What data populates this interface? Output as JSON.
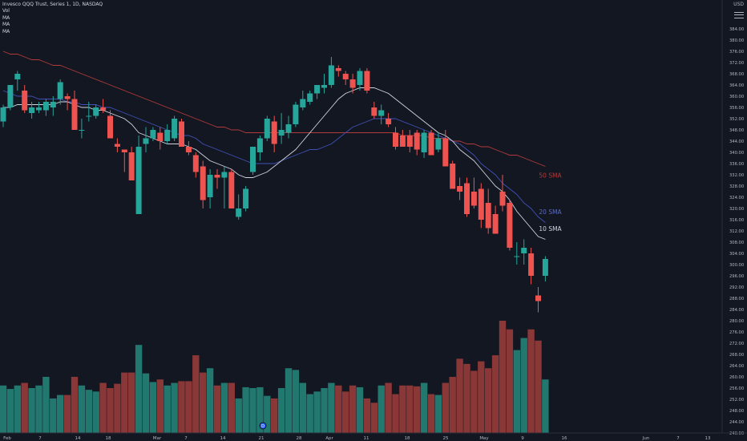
{
  "legend": {
    "symbol_line": "Invesco QQQ Trust, Series 1, 1D, NASDAQ",
    "vol_label": "Vol",
    "ma_labels": [
      "MA",
      "MA",
      "MA"
    ]
  },
  "price_scale": {
    "currency": "USD",
    "ticks": [
      "384.00",
      "380.00",
      "376.00",
      "372.00",
      "368.00",
      "364.00",
      "360.00",
      "356.00",
      "352.00",
      "348.00",
      "344.00",
      "340.00",
      "336.00",
      "332.00",
      "328.00",
      "324.00",
      "320.00",
      "316.00",
      "312.00",
      "308.00",
      "304.00",
      "300.00",
      "296.00",
      "292.00",
      "288.00",
      "284.00",
      "280.00",
      "276.00",
      "272.00",
      "268.00",
      "264.00",
      "260.00",
      "256.00",
      "252.00",
      "248.00",
      "244.00",
      "240.00"
    ]
  },
  "time_scale": {
    "ticks": [
      "Feb",
      "7",
      "14",
      "18",
      "Mar",
      "7",
      "14",
      "21",
      "28",
      "Apr",
      "11",
      "18",
      "25",
      "May",
      "9",
      "16",
      "Jun",
      "7",
      "13"
    ]
  },
  "sma_labels": {
    "sma50": "50 SMA",
    "sma20": "20 SMA",
    "sma10": "10 SMA"
  },
  "colors": {
    "background": "#131722",
    "up": "#26a69a",
    "down": "#ef5350",
    "vol_up": "#22786e",
    "vol_down": "#8a3737",
    "sma10": "#d1d4dc",
    "sma20": "#3f51b5",
    "sma50": "#b23a3a"
  },
  "event_marker": "D",
  "chart_data": {
    "type": "candlestick",
    "title": "Invesco QQQ Trust, Series 1, 1D, NASDAQ",
    "ylim": [
      240,
      388
    ],
    "candles": [
      {
        "o": 351,
        "h": 357,
        "l": 349,
        "c": 356,
        "v": 55
      },
      {
        "o": 356,
        "h": 364,
        "l": 355,
        "c": 364,
        "v": 51
      },
      {
        "o": 366,
        "h": 369,
        "l": 362,
        "c": 368,
        "v": 55
      },
      {
        "o": 362,
        "h": 364,
        "l": 354,
        "c": 355,
        "v": 58
      },
      {
        "o": 354,
        "h": 358,
        "l": 352,
        "c": 356,
        "v": 52
      },
      {
        "o": 355,
        "h": 358,
        "l": 354,
        "c": 356,
        "v": 55
      },
      {
        "o": 355,
        "h": 359,
        "l": 353,
        "c": 358,
        "v": 65
      },
      {
        "o": 356,
        "h": 360,
        "l": 353,
        "c": 358,
        "v": 40
      },
      {
        "o": 359,
        "h": 366,
        "l": 357,
        "c": 365,
        "v": 44
      },
      {
        "o": 360,
        "h": 361,
        "l": 355,
        "c": 359,
        "v": 44
      },
      {
        "o": 359,
        "h": 362,
        "l": 348,
        "c": 348,
        "v": 65
      },
      {
        "o": 348,
        "h": 352,
        "l": 345,
        "c": 348,
        "v": 55
      },
      {
        "o": 353,
        "h": 358,
        "l": 351,
        "c": 353,
        "v": 50
      },
      {
        "o": 353,
        "h": 357,
        "l": 352,
        "c": 356,
        "v": 48
      },
      {
        "o": 356,
        "h": 359,
        "l": 354,
        "c": 355,
        "v": 58
      },
      {
        "o": 353,
        "h": 355,
        "l": 345,
        "c": 345,
        "v": 52
      },
      {
        "o": 343,
        "h": 345,
        "l": 340,
        "c": 342,
        "v": 57
      },
      {
        "o": 341,
        "h": 341,
        "l": 333,
        "c": 340,
        "v": 70
      },
      {
        "o": 340,
        "h": 342,
        "l": 330,
        "c": 330,
        "v": 70
      },
      {
        "o": 318,
        "h": 346,
        "l": 318,
        "c": 342,
        "v": 102
      },
      {
        "o": 343,
        "h": 349,
        "l": 340,
        "c": 345,
        "v": 69
      },
      {
        "o": 345,
        "h": 349,
        "l": 344,
        "c": 348,
        "v": 59
      },
      {
        "o": 347,
        "h": 349,
        "l": 341,
        "c": 344,
        "v": 62
      },
      {
        "o": 344,
        "h": 350,
        "l": 343,
        "c": 348,
        "v": 55
      },
      {
        "o": 345,
        "h": 353,
        "l": 344,
        "c": 352,
        "v": 58
      },
      {
        "o": 351,
        "h": 352,
        "l": 342,
        "c": 342,
        "v": 60
      },
      {
        "o": 342,
        "h": 344,
        "l": 339,
        "c": 340,
        "v": 60
      },
      {
        "o": 339,
        "h": 340,
        "l": 331,
        "c": 333,
        "v": 90
      },
      {
        "o": 335,
        "h": 337,
        "l": 320,
        "c": 323,
        "v": 70
      },
      {
        "o": 324,
        "h": 334,
        "l": 320,
        "c": 332,
        "v": 75
      },
      {
        "o": 332,
        "h": 334,
        "l": 327,
        "c": 331,
        "v": 55
      },
      {
        "o": 331,
        "h": 335,
        "l": 320,
        "c": 333,
        "v": 58
      },
      {
        "o": 333,
        "h": 334,
        "l": 320,
        "c": 320,
        "v": 58
      },
      {
        "o": 317,
        "h": 325,
        "l": 316,
        "c": 320,
        "v": 40
      },
      {
        "o": 320,
        "h": 328,
        "l": 319,
        "c": 327,
        "v": 53
      },
      {
        "o": 333,
        "h": 342,
        "l": 332,
        "c": 342,
        "v": 52
      },
      {
        "o": 340,
        "h": 346,
        "l": 337,
        "c": 345,
        "v": 53
      },
      {
        "o": 345,
        "h": 353,
        "l": 344,
        "c": 352,
        "v": 43
      },
      {
        "o": 351,
        "h": 353,
        "l": 340,
        "c": 343,
        "v": 40
      },
      {
        "o": 346,
        "h": 354,
        "l": 343,
        "c": 348,
        "v": 52
      },
      {
        "o": 347,
        "h": 353,
        "l": 345,
        "c": 350,
        "v": 75
      },
      {
        "o": 350,
        "h": 358,
        "l": 349,
        "c": 357,
        "v": 73
      },
      {
        "o": 356,
        "h": 362,
        "l": 355,
        "c": 359,
        "v": 58
      },
      {
        "o": 358,
        "h": 362,
        "l": 357,
        "c": 361,
        "v": 45
      },
      {
        "o": 361,
        "h": 364,
        "l": 359,
        "c": 364,
        "v": 48
      },
      {
        "o": 363,
        "h": 368,
        "l": 361,
        "c": 364,
        "v": 52
      },
      {
        "o": 364,
        "h": 374,
        "l": 363,
        "c": 371,
        "v": 58
      },
      {
        "o": 370,
        "h": 371,
        "l": 367,
        "c": 369,
        "v": 55
      },
      {
        "o": 368,
        "h": 369,
        "l": 364,
        "c": 366,
        "v": 48
      },
      {
        "o": 366,
        "h": 368,
        "l": 361,
        "c": 363,
        "v": 55
      },
      {
        "o": 364,
        "h": 370,
        "l": 362,
        "c": 369,
        "v": 53
      },
      {
        "o": 369,
        "h": 370,
        "l": 361,
        "c": 362,
        "v": 40
      },
      {
        "o": 356,
        "h": 358,
        "l": 352,
        "c": 353,
        "v": 35
      },
      {
        "o": 353,
        "h": 357,
        "l": 350,
        "c": 355,
        "v": 55
      },
      {
        "o": 352,
        "h": 354,
        "l": 349,
        "c": 350,
        "v": 58
      },
      {
        "o": 347,
        "h": 349,
        "l": 341,
        "c": 342,
        "v": 45
      },
      {
        "o": 346,
        "h": 348,
        "l": 342,
        "c": 342,
        "v": 55
      },
      {
        "o": 346,
        "h": 348,
        "l": 340,
        "c": 342,
        "v": 55
      },
      {
        "o": 347,
        "h": 348,
        "l": 339,
        "c": 341,
        "v": 54
      },
      {
        "o": 340,
        "h": 348,
        "l": 338,
        "c": 347,
        "v": 58
      },
      {
        "o": 347,
        "h": 348,
        "l": 339,
        "c": 339,
        "v": 45
      },
      {
        "o": 341,
        "h": 347,
        "l": 340,
        "c": 345,
        "v": 44
      },
      {
        "o": 345,
        "h": 348,
        "l": 335,
        "c": 335,
        "v": 58
      },
      {
        "o": 336,
        "h": 337,
        "l": 327,
        "c": 327,
        "v": 65
      },
      {
        "o": 328,
        "h": 331,
        "l": 323,
        "c": 326,
        "v": 86
      },
      {
        "o": 329,
        "h": 331,
        "l": 317,
        "c": 318,
        "v": 80
      },
      {
        "o": 326,
        "h": 331,
        "l": 320,
        "c": 321,
        "v": 72
      },
      {
        "o": 327,
        "h": 329,
        "l": 313,
        "c": 316,
        "v": 83
      },
      {
        "o": 322,
        "h": 327,
        "l": 311,
        "c": 313,
        "v": 75
      },
      {
        "o": 318,
        "h": 321,
        "l": 311,
        "c": 311,
        "v": 90
      },
      {
        "o": 326,
        "h": 332,
        "l": 319,
        "c": 321,
        "v": 130
      },
      {
        "o": 322,
        "h": 323,
        "l": 305,
        "c": 306,
        "v": 120
      },
      {
        "o": 303,
        "h": 308,
        "l": 300,
        "c": 303,
        "v": 96
      },
      {
        "o": 304,
        "h": 309,
        "l": 300,
        "c": 306,
        "v": 110
      },
      {
        "o": 304,
        "h": 306,
        "l": 293,
        "c": 296,
        "v": 120
      },
      {
        "o": 289,
        "h": 292,
        "l": 283,
        "c": 287,
        "v": 107
      },
      {
        "o": 296,
        "h": 303,
        "l": 294,
        "c": 302,
        "v": 62
      }
    ],
    "volume_scale_max": 130,
    "sma10": [
      356,
      356,
      357,
      357,
      357,
      357,
      357,
      357,
      358,
      358,
      357,
      356,
      356,
      355,
      355,
      354,
      353,
      352,
      350,
      347,
      346,
      345,
      344,
      343,
      343,
      343,
      342,
      341,
      339,
      337,
      336,
      335,
      334,
      332,
      331,
      331,
      332,
      333,
      335,
      337,
      339,
      341,
      344,
      347,
      350,
      353,
      356,
      359,
      361,
      362,
      363,
      363,
      363,
      362,
      361,
      359,
      357,
      355,
      353,
      351,
      349,
      347,
      346,
      344,
      341,
      339,
      337,
      334,
      331,
      328,
      326,
      323,
      319,
      316,
      313,
      310,
      309
    ],
    "sma20": [
      362,
      361,
      360,
      360,
      360,
      359,
      359,
      359,
      359,
      358,
      358,
      357,
      357,
      357,
      356,
      356,
      355,
      354,
      353,
      352,
      351,
      350,
      349,
      348,
      347,
      346,
      346,
      345,
      343,
      342,
      341,
      340,
      339,
      338,
      337,
      336,
      336,
      336,
      336,
      337,
      338,
      339,
      340,
      341,
      341,
      342,
      343,
      345,
      347,
      349,
      350,
      351,
      352,
      352,
      352,
      352,
      351,
      350,
      349,
      348,
      347,
      346,
      345,
      344,
      343,
      341,
      339,
      336,
      334,
      332,
      329,
      327,
      325,
      322,
      320,
      317,
      315
    ],
    "sma50": [
      376,
      375,
      375,
      374,
      373,
      373,
      372,
      371,
      371,
      370,
      369,
      368,
      367,
      366,
      365,
      364,
      363,
      362,
      361,
      360,
      359,
      358,
      357,
      356,
      355,
      354,
      353,
      352,
      351,
      350,
      349,
      349,
      348,
      348,
      347,
      347,
      347,
      347,
      347,
      347,
      347,
      347,
      347,
      347,
      347,
      347,
      347,
      347,
      347,
      347,
      347,
      347,
      347,
      347,
      347,
      347,
      346,
      346,
      346,
      346,
      345,
      345,
      345,
      344,
      344,
      343,
      343,
      342,
      342,
      341,
      340,
      339,
      339,
      338,
      337,
      336,
      335
    ]
  }
}
